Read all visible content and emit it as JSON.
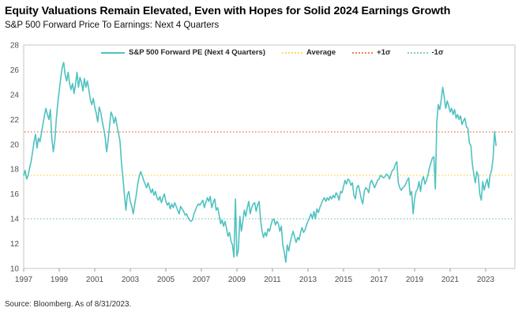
{
  "header": {
    "title": "Equity Valuations Remain Elevated, Even with Hopes for Solid 2024 Earnings Growth",
    "subtitle": "S&P 500 Forward Price To Earnings: Next 4 Quarters"
  },
  "source_note": "Source: Bloomberg. As of 8/31/2023.",
  "legend": {
    "items": [
      {
        "label": "S&P 500 Forward PE (Next 4 Quarters)",
        "style": "solid",
        "color": "#4FC2C0"
      },
      {
        "label": "Average",
        "style": "dotted",
        "color": "#FFD95E"
      },
      {
        "label": "+1σ",
        "style": "dotted",
        "color": "#F07E5E"
      },
      {
        "label": "-1σ",
        "style": "dotted",
        "color": "#85CCB1"
      }
    ]
  },
  "chart_data": {
    "type": "line",
    "title": "Equity Valuations Remain Elevated, Even with Hopes for Solid 2024 Earnings Growth",
    "subtitle": "S&P 500 Forward Price To Earnings: Next 4 Quarters",
    "grid": false,
    "legend_position": "top-inside",
    "colors": {
      "series": "#4FC2C0",
      "average": "#FFD95E",
      "plus1sd": "#F07E5E",
      "minus1sd": "#85CCB1",
      "border": "#c6c6c6",
      "tick": "#9a9a9a"
    },
    "y_axis": {
      "min": 10,
      "max": 28,
      "step": 2,
      "ticks": [
        28,
        26,
        24,
        22,
        20,
        18,
        16,
        14,
        12,
        10
      ]
    },
    "x_axis": {
      "start_year": 1997,
      "tick_years": [
        1997,
        1999,
        2001,
        2003,
        2005,
        2007,
        2009,
        2011,
        2013,
        2015,
        2017,
        2019,
        2021,
        2023
      ],
      "end": "2023-08"
    },
    "reference_lines": [
      {
        "name": "+1σ",
        "value": 21.0,
        "color": "#F07E5E"
      },
      {
        "name": "Average",
        "value": 17.5,
        "color": "#FFD95E"
      },
      {
        "name": "-1σ",
        "value": 14.0,
        "color": "#85CCB1"
      }
    ],
    "series": [
      {
        "name": "S&P 500 Forward PE (Next 4 Quarters)",
        "color": "#4FC2C0",
        "frequency": "monthly",
        "start": "1997-01",
        "values": [
          17.5,
          17.9,
          17.2,
          17.5,
          18.1,
          18.6,
          19.4,
          20.2,
          20.8,
          19.7,
          20.5,
          20.2,
          20.9,
          21.6,
          22.3,
          22.9,
          22.4,
          22.0,
          22.8,
          20.5,
          19.4,
          20.3,
          22.0,
          23.3,
          24.3,
          25.3,
          26.2,
          26.6,
          25.6,
          25.1,
          25.8,
          24.9,
          24.4,
          24.9,
          24.1,
          24.8,
          25.8,
          24.6,
          25.4,
          25.0,
          24.3,
          25.3,
          24.6,
          25.1,
          24.4,
          23.6,
          23.2,
          23.7,
          23.0,
          22.5,
          21.8,
          23.0,
          22.6,
          21.9,
          21.3,
          20.6,
          19.4,
          20.3,
          21.5,
          22.6,
          22.3,
          21.7,
          22.2,
          21.5,
          20.9,
          20.3,
          18.6,
          17.3,
          16.0,
          14.7,
          15.9,
          16.2,
          15.4,
          15.0,
          14.4,
          15.2,
          15.9,
          16.8,
          17.4,
          17.8,
          17.5,
          17.1,
          16.8,
          16.5,
          16.9,
          16.5,
          16.1,
          16.4,
          15.9,
          16.2,
          15.7,
          15.5,
          15.8,
          15.3,
          15.7,
          16.0,
          15.4,
          15.1,
          15.3,
          14.8,
          15.2,
          14.9,
          15.3,
          15.0,
          14.7,
          14.4,
          15.0,
          14.8,
          14.6,
          14.3,
          14.4,
          14.1,
          13.9,
          13.8,
          13.9,
          14.4,
          14.7,
          15.0,
          15.2,
          15.1,
          15.3,
          15.5,
          14.9,
          15.3,
          15.7,
          15.4,
          15.8,
          14.9,
          15.3,
          15.6,
          14.7,
          14.9,
          14.3,
          13.6,
          13.9,
          13.4,
          13.8,
          13.2,
          12.6,
          12.9,
          12.2,
          11.9,
          10.9,
          15.6,
          11.0,
          11.5,
          14.2,
          13.0,
          13.8,
          14.7,
          14.2,
          14.9,
          15.4,
          14.4,
          14.9,
          15.2,
          15.3,
          14.6,
          15.1,
          15.4,
          13.9,
          13.0,
          12.5,
          12.9,
          12.6,
          13.2,
          13.0,
          13.5,
          13.9,
          14.0,
          13.5,
          13.8,
          13.6,
          13.0,
          13.4,
          11.9,
          11.3,
          10.5,
          11.9,
          11.4,
          12.1,
          12.6,
          13.0,
          12.5,
          12.1,
          12.5,
          12.3,
          12.9,
          13.3,
          12.9,
          13.1,
          13.5,
          13.8,
          14.1,
          14.4,
          14.0,
          14.6,
          14.0,
          14.8,
          14.5,
          14.9,
          15.2,
          15.5,
          15.7,
          15.4,
          15.7,
          15.5,
          15.8,
          15.6,
          15.9,
          15.7,
          16.1,
          15.9,
          15.5,
          16.2,
          16.1,
          16.6,
          17.1,
          16.8,
          17.2,
          17.1,
          16.7,
          16.9,
          15.9,
          15.6,
          16.5,
          16.7,
          16.2,
          15.6,
          15.2,
          16.2,
          16.5,
          16.4,
          16.1,
          16.9,
          17.1,
          16.8,
          16.5,
          16.8,
          17.1,
          17.2,
          17.5,
          17.4,
          17.3,
          17.4,
          17.6,
          17.5,
          17.2,
          17.6,
          17.9,
          18.0,
          18.4,
          18.6,
          16.9,
          16.5,
          16.3,
          16.5,
          16.6,
          16.8,
          17.1,
          17.3,
          15.9,
          16.2,
          14.4,
          15.6,
          16.2,
          16.4,
          17.0,
          16.2,
          17.1,
          17.4,
          16.8,
          17.1,
          17.5,
          18.1,
          18.5,
          18.9,
          19.0,
          16.4,
          21.8,
          23.2,
          22.8,
          23.6,
          24.6,
          23.8,
          22.9,
          23.5,
          23.1,
          22.6,
          22.9,
          22.4,
          22.8,
          22.1,
          22.4,
          22.0,
          22.3,
          21.6,
          21.9,
          22.1,
          21.4,
          21.3,
          20.1,
          19.9,
          18.4,
          17.6,
          16.9,
          17.8,
          17.5,
          16.0,
          15.5,
          17.0,
          16.3,
          16.8,
          17.2,
          16.5,
          17.5,
          17.9,
          18.9,
          21.0,
          19.9
        ]
      }
    ]
  }
}
